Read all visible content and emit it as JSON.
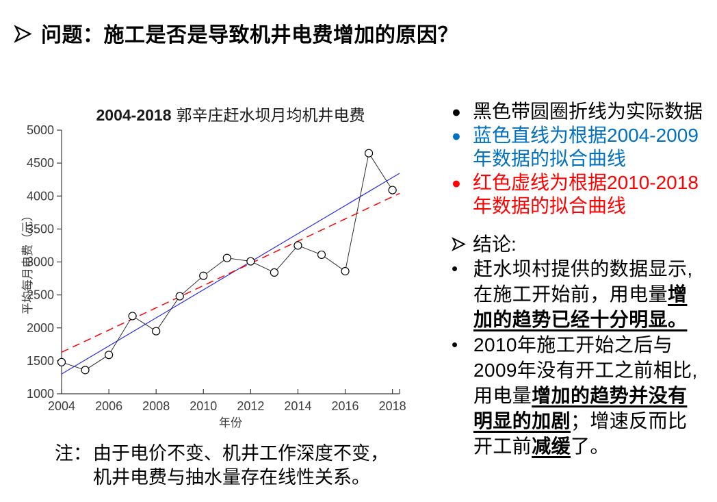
{
  "header": {
    "title": "问题：施工是否是导致机井电费增加的原因？"
  },
  "chart_data": {
    "type": "line",
    "title": "2004-2018郭辛庄赶水坝月均机井电费",
    "title_bold_part": "2004-2018",
    "title_cjk_part": "郭辛庄赶水坝月均机井电费",
    "xlabel": "年份",
    "ylabel": "平均每月电费（元）",
    "xlim": [
      2004,
      2018.3
    ],
    "ylim": [
      1000,
      5000
    ],
    "xticks": [
      2004,
      2006,
      2008,
      2010,
      2012,
      2014,
      2016,
      2018
    ],
    "yticks": [
      1000,
      1500,
      2000,
      2500,
      3000,
      3500,
      4000,
      4500,
      5000
    ],
    "grid": false,
    "legend_position": "none",
    "series": [
      {
        "name": "实际数据",
        "style": "black line with circle markers",
        "color": "#2b2b2b",
        "marker": "circle",
        "x": [
          2004,
          2005,
          2006,
          2007,
          2008,
          2009,
          2010,
          2011,
          2012,
          2013,
          2014,
          2015,
          2016,
          2017,
          2018
        ],
        "values": [
          1480,
          1360,
          1590,
          2180,
          1950,
          2480,
          2790,
          3060,
          3010,
          2840,
          3250,
          3110,
          2860,
          4650,
          4090
        ]
      },
      {
        "name": "2004-2009年数据的拟合曲线",
        "style": "blue solid fit line",
        "color": "#2a2af0",
        "dashed": false,
        "x": [
          2004,
          2018.3
        ],
        "values": [
          1300,
          4345
        ]
      },
      {
        "name": "2010-2018年数据的拟合曲线",
        "style": "red dashed fit line",
        "color": "#ff0000",
        "dashed": true,
        "x": [
          2004,
          2018.3
        ],
        "values": [
          1630,
          4040
        ]
      }
    ]
  },
  "legend_notes": {
    "items": [
      {
        "bullet": "●",
        "color": "#000000",
        "lines": [
          "黑色带圆圈折线为实际数据"
        ]
      },
      {
        "bullet": "●",
        "color": "#0070C0",
        "lines": [
          "蓝色直线为根据2004-2009",
          "年数据的拟合曲线"
        ]
      },
      {
        "bullet": "●",
        "color": "#FF0000",
        "lines": [
          "红色虚线为根据2010-2018",
          "年数据的拟合曲线"
        ]
      }
    ]
  },
  "conclusion": {
    "header": "结论:",
    "items": [
      {
        "bullet": "•",
        "lines": [
          [
            {
              "t": "赶水坝村提供的数据显示,"
            }
          ],
          [
            {
              "t": "在施工开始前，用电量"
            },
            {
              "t": "增",
              "b": true
            }
          ],
          [
            {
              "t": "加的趋势已经十分明显。",
              "b": true
            }
          ]
        ]
      },
      {
        "bullet": "•",
        "lines": [
          [
            {
              "t": "2010年施工开始之后与"
            }
          ],
          [
            {
              "t": "2009年没有开工之前相比,"
            }
          ],
          [
            {
              "t": "用电量"
            },
            {
              "t": "增加的趋势并没有",
              "b": true
            }
          ],
          [
            {
              "t": "明显的加剧",
              "b": true
            },
            {
              "t": "；增速反而比"
            }
          ],
          [
            {
              "t": "开工前"
            },
            {
              "t": "减缓",
              "b": true
            },
            {
              "t": "了。"
            }
          ]
        ]
      }
    ]
  },
  "note": {
    "prefix": "注：",
    "lines": [
      "由于电价不变、机井工作深度不变，",
      "机井电费与抽水量存在线性关系。"
    ]
  },
  "colors": {
    "blue_text": "#0070C0",
    "red_text": "#FF0000",
    "axis": "#3d3d3d",
    "fit_blue": "#2a2af0",
    "fit_red": "#ff0000"
  }
}
